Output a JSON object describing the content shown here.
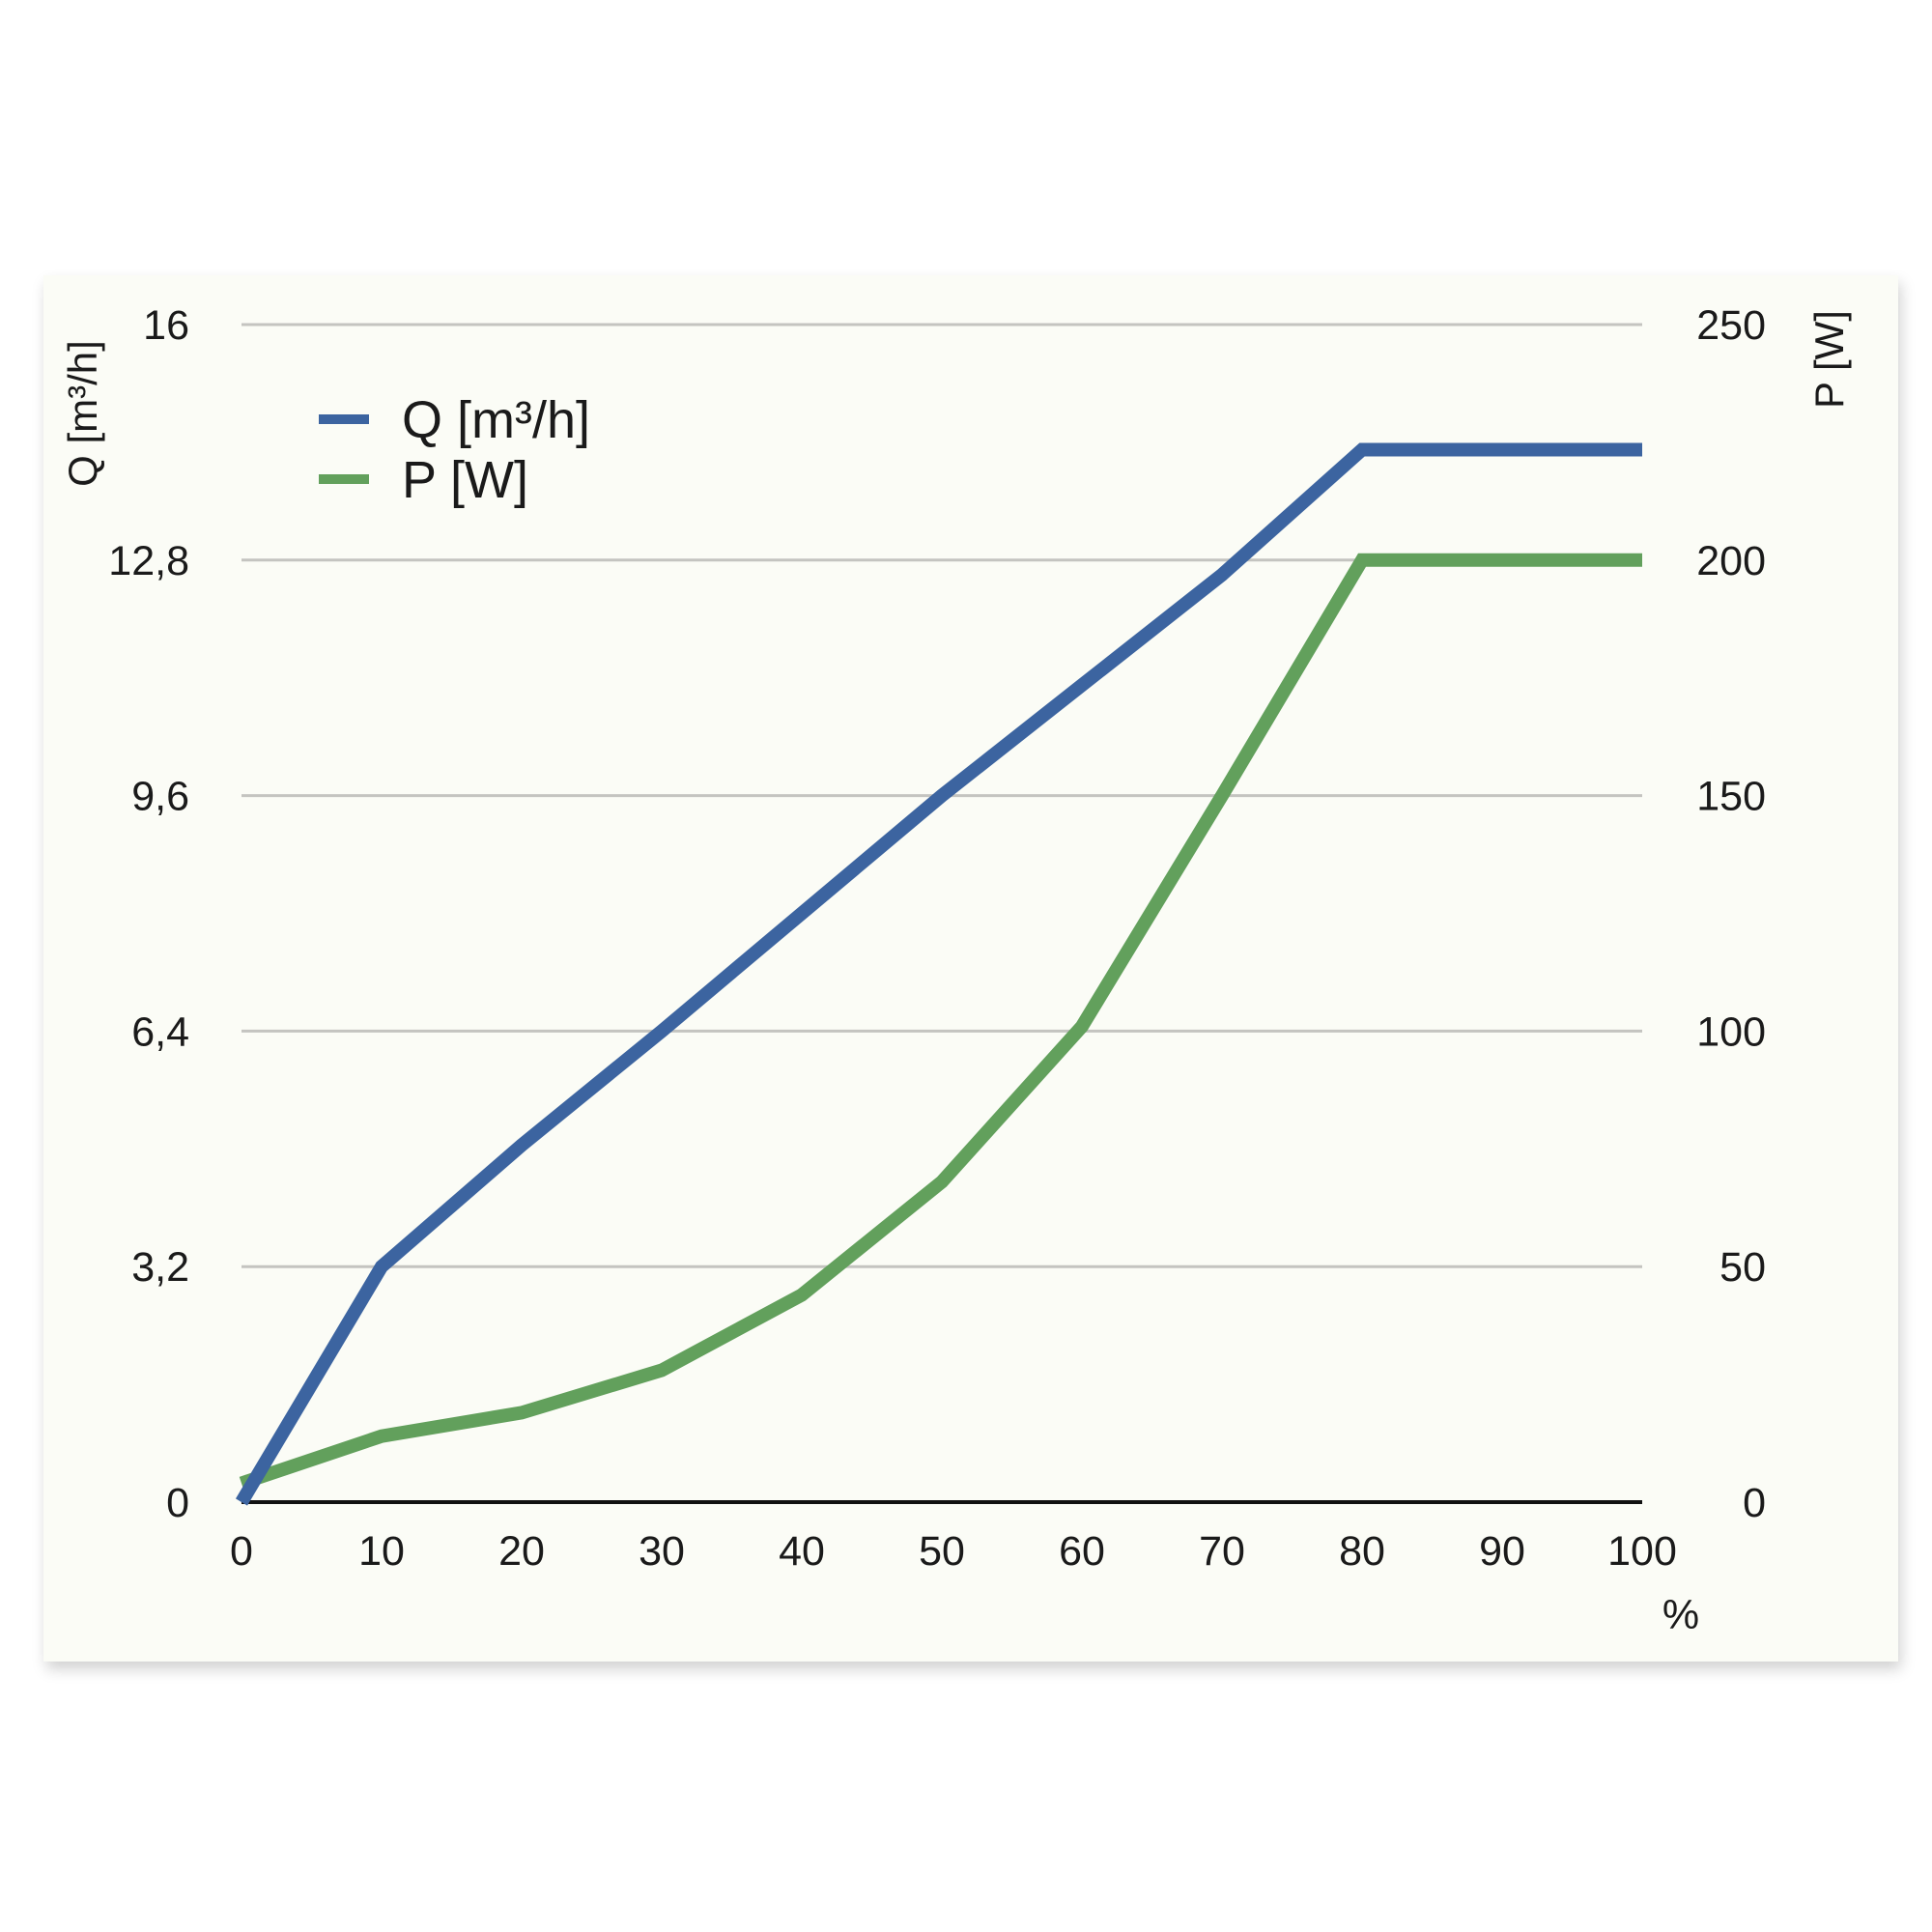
{
  "chart_data": {
    "type": "line",
    "x": [
      0,
      10,
      20,
      30,
      40,
      50,
      60,
      70,
      80,
      90,
      100
    ],
    "xticks": [
      "0",
      "10",
      "20",
      "30",
      "40",
      "50",
      "60",
      "70",
      "80",
      "90",
      "100"
    ],
    "xlabel": "%",
    "xlim": [
      0,
      100
    ],
    "y_left": {
      "label": "Q [m³/h]",
      "ticks": [
        "0",
        "3,2",
        "6,4",
        "9,6",
        "12,8",
        "16"
      ],
      "lim": [
        0,
        16
      ]
    },
    "y_right": {
      "label": "P [W]",
      "ticks": [
        "0",
        "50",
        "100",
        "150",
        "200",
        "250"
      ],
      "lim": [
        0,
        250
      ]
    },
    "grid": true,
    "legend": {
      "position": "top-left"
    },
    "series": [
      {
        "name": "Q [m³/h]",
        "axis": "left",
        "color": "#3c64a0",
        "values": [
          0,
          3.2,
          4.85,
          6.4,
          8.0,
          9.6,
          11.1,
          12.6,
          14.3,
          14.3,
          14.3
        ]
      },
      {
        "name": "P [W]",
        "axis": "right",
        "color": "#62a05c",
        "values": [
          4,
          14,
          19,
          28,
          44,
          68,
          101,
          150,
          200,
          200,
          200
        ]
      }
    ]
  }
}
